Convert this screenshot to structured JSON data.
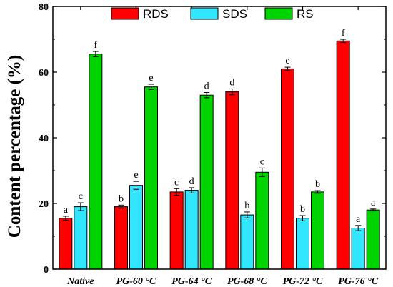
{
  "chart_data": {
    "type": "bar",
    "categories": [
      "Native",
      "PG-60 °C",
      "PG-64 °C",
      "PG-68 °C",
      "PG-72 °C",
      "PG-76 °C"
    ],
    "series": [
      {
        "name": "RDS",
        "color": "#ff0000",
        "values": [
          15.5,
          19.0,
          23.5,
          54.0,
          61.0,
          69.5
        ],
        "errors": [
          0.6,
          0.5,
          1.0,
          0.9,
          0.5,
          0.5
        ],
        "letters": [
          "a",
          "b",
          "c",
          "d",
          "e",
          "f"
        ]
      },
      {
        "name": "SDS",
        "color": "#33e6ff",
        "values": [
          19.0,
          25.5,
          24.0,
          16.5,
          15.5,
          12.5
        ],
        "errors": [
          1.2,
          1.2,
          0.8,
          0.9,
          0.8,
          0.8
        ],
        "letters": [
          "c",
          "e",
          "d",
          "b",
          "b",
          "a"
        ]
      },
      {
        "name": "RS",
        "color": "#00d400",
        "values": [
          65.5,
          55.5,
          53.0,
          29.5,
          23.5,
          18.0
        ],
        "errors": [
          0.8,
          0.8,
          0.8,
          1.3,
          0.4,
          0.3
        ],
        "letters": [
          "f",
          "e",
          "d",
          "c",
          "b",
          "a"
        ]
      }
    ],
    "ylabel": "Content percentage (%)",
    "xlabel": "",
    "ylim": [
      0,
      80
    ],
    "yticks": [
      "0",
      "20",
      "40",
      "60",
      "80"
    ],
    "legend_position": "top"
  }
}
